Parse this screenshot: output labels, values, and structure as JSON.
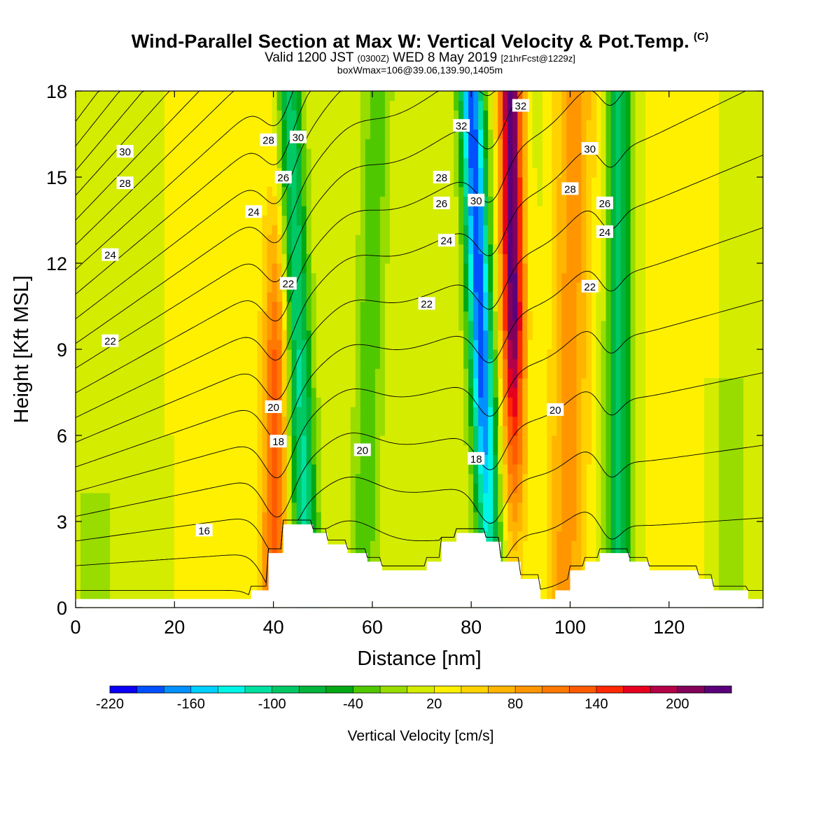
{
  "header": {
    "title": "Wind-Parallel Section at Max W: Vertical Velocity & Pot.Temp.",
    "title_mark": "(C)",
    "valid_prefix": "Valid 1200 JST",
    "valid_utc": "(0300Z)",
    "valid_date": "WED 8 May 2019",
    "forecast_note": "[21hrFcst@1229z]",
    "box_line": "boxWmax=106@39.06,139.90,1405m"
  },
  "chart_data": {
    "type": "heatmap",
    "xlabel": "Distance [nm]",
    "ylabel": "Height [Kft MSL]",
    "xlim": [
      0,
      139
    ],
    "ylim": [
      0,
      18
    ],
    "x_ticks": [
      0,
      20,
      40,
      60,
      80,
      100,
      120
    ],
    "y_ticks": [
      0,
      3,
      6,
      9,
      12,
      15,
      18
    ],
    "colorbar": {
      "label": "Vertical Velocity [cm/s]",
      "range": [
        -220,
        220
      ],
      "step": 20,
      "tick_labels": [
        -220,
        -160,
        -100,
        -40,
        20,
        80,
        140,
        200
      ],
      "colors": [
        "#0a00f5",
        "#0050ff",
        "#0090ff",
        "#00cfff",
        "#00f5e6",
        "#00e0a0",
        "#00c864",
        "#00b43c",
        "#00a814",
        "#50c800",
        "#98dc00",
        "#d4ec00",
        "#fff000",
        "#ffd200",
        "#ffb400",
        "#ff9600",
        "#ff7800",
        "#ff5a00",
        "#ff2800",
        "#e6001e",
        "#b40046",
        "#82005a",
        "#5a007a"
      ]
    },
    "velocity_bands": [
      {
        "name": "updraft-40nm",
        "w_max": 110,
        "x_bottom": 40,
        "x_top": 41,
        "halfwidth": 2.6
      },
      {
        "name": "downdraft-45nm",
        "w_min": -120,
        "x_bottom": 47,
        "x_top": 43,
        "halfwidth": 2.6
      },
      {
        "name": "downdraft-60nm",
        "w_min": -50,
        "x_bottom": 58,
        "x_top": 61,
        "halfwidth": 2.8
      },
      {
        "name": "downdraft-80nm",
        "w_min": -210,
        "x_bottom": 84,
        "x_top": 80,
        "halfwidth": 2.4
      },
      {
        "name": "updraft-88nm",
        "w_max": 215,
        "x_bottom": 89,
        "x_top": 88,
        "halfwidth": 2.3
      },
      {
        "name": "downdraft-110nm",
        "w_min": -100,
        "x_bottom": 110,
        "x_top": 110,
        "halfwidth": 2.6
      },
      {
        "name": "updraft-100nm",
        "w_max": 75,
        "x_bottom": 99,
        "x_top": 101,
        "halfwidth": 4
      }
    ],
    "terrain": [
      [
        0,
        0.3
      ],
      [
        35.5,
        0.3
      ],
      [
        35.5,
        0.6
      ],
      [
        39,
        0.6
      ],
      [
        39,
        1.9
      ],
      [
        42,
        1.9
      ],
      [
        42,
        2.9
      ],
      [
        48,
        2.9
      ],
      [
        48,
        2.6
      ],
      [
        51,
        2.6
      ],
      [
        51,
        2.2
      ],
      [
        55,
        2.2
      ],
      [
        55,
        1.9
      ],
      [
        59,
        1.9
      ],
      [
        59,
        1.6
      ],
      [
        62,
        1.6
      ],
      [
        62,
        1.3
      ],
      [
        71,
        1.3
      ],
      [
        71,
        1.6
      ],
      [
        74,
        1.6
      ],
      [
        74,
        2.3
      ],
      [
        77,
        2.3
      ],
      [
        77,
        2.6
      ],
      [
        83,
        2.6
      ],
      [
        83,
        2.3
      ],
      [
        86,
        2.3
      ],
      [
        86,
        1.6
      ],
      [
        90,
        1.6
      ],
      [
        90,
        1.0
      ],
      [
        94,
        1.0
      ],
      [
        94,
        0.3
      ],
      [
        97,
        0.3
      ],
      [
        97,
        0.6
      ],
      [
        100,
        0.6
      ],
      [
        100,
        1.3
      ],
      [
        103,
        1.3
      ],
      [
        103,
        1.6
      ],
      [
        106,
        1.6
      ],
      [
        106,
        1.9
      ],
      [
        112,
        1.9
      ],
      [
        112,
        1.6
      ],
      [
        116,
        1.6
      ],
      [
        116,
        1.3
      ],
      [
        126,
        1.3
      ],
      [
        126,
        1.0
      ],
      [
        129,
        1.0
      ],
      [
        129,
        0.6
      ],
      [
        136,
        0.6
      ],
      [
        136,
        0.3
      ],
      [
        139,
        0.3
      ]
    ],
    "isentrope_labels": [
      {
        "text": "30",
        "x": 10,
        "y": 15.9
      },
      {
        "text": "28",
        "x": 10,
        "y": 14.8
      },
      {
        "text": "24",
        "x": 7,
        "y": 12.3
      },
      {
        "text": "22",
        "x": 7,
        "y": 9.3
      },
      {
        "text": "16",
        "x": 26,
        "y": 2.7
      },
      {
        "text": "28",
        "x": 39,
        "y": 16.3
      },
      {
        "text": "30",
        "x": 45,
        "y": 16.4
      },
      {
        "text": "26",
        "x": 42,
        "y": 15.0
      },
      {
        "text": "24",
        "x": 36,
        "y": 13.8
      },
      {
        "text": "22",
        "x": 43,
        "y": 11.3
      },
      {
        "text": "20",
        "x": 40,
        "y": 7.0
      },
      {
        "text": "18",
        "x": 41,
        "y": 5.8
      },
      {
        "text": "20",
        "x": 58,
        "y": 5.5
      },
      {
        "text": "28",
        "x": 74,
        "y": 15.0
      },
      {
        "text": "26",
        "x": 74,
        "y": 14.1
      },
      {
        "text": "24",
        "x": 75,
        "y": 12.8
      },
      {
        "text": "22",
        "x": 71,
        "y": 10.6
      },
      {
        "text": "32",
        "x": 78,
        "y": 16.8
      },
      {
        "text": "30",
        "x": 81,
        "y": 14.2
      },
      {
        "text": "18",
        "x": 81,
        "y": 5.2
      },
      {
        "text": "32",
        "x": 90,
        "y": 17.5
      },
      {
        "text": "30",
        "x": 104,
        "y": 16.0
      },
      {
        "text": "28",
        "x": 100,
        "y": 14.6
      },
      {
        "text": "26",
        "x": 107,
        "y": 14.1
      },
      {
        "text": "24",
        "x": 107,
        "y": 13.1
      },
      {
        "text": "22",
        "x": 104,
        "y": 11.2
      },
      {
        "text": "20",
        "x": 97,
        "y": 6.9
      }
    ]
  }
}
